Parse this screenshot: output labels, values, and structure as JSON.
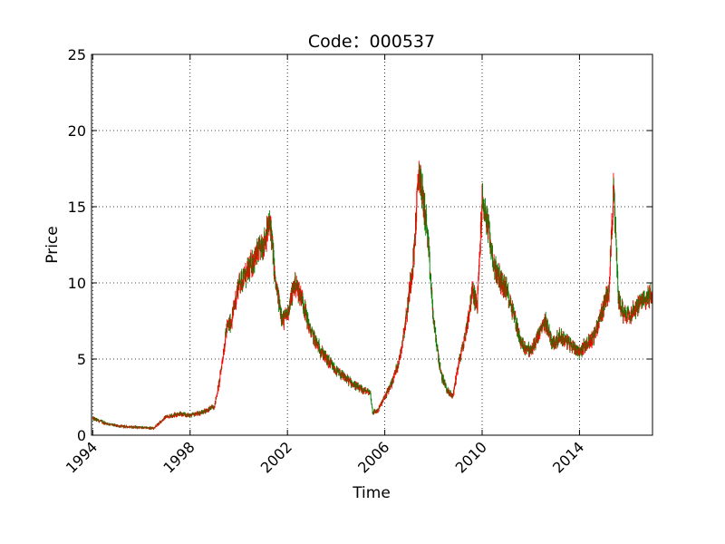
{
  "chart_data": {
    "type": "candlestick",
    "title": "Code：000537",
    "xlabel": "Time",
    "ylabel": "Price",
    "xlim": [
      1993.95,
      2017.0
    ],
    "ylim": [
      0,
      25
    ],
    "x_ticks": [
      1994,
      1998,
      2002,
      2006,
      2010,
      2014
    ],
    "x_tick_labels": [
      "1994",
      "1998",
      "2002",
      "2006",
      "2010",
      "2014"
    ],
    "y_ticks": [
      0,
      5,
      10,
      15,
      20,
      25
    ],
    "y_tick_labels": [
      "0",
      "5",
      "10",
      "15",
      "20",
      "25"
    ],
    "grid": true,
    "grid_style": "dotted",
    "colors": {
      "up": "#ff0000",
      "down": "#008000"
    },
    "price_trend": {
      "x": [
        1994.0,
        1994.5,
        1995.0,
        1995.5,
        1996.0,
        1996.5,
        1997.0,
        1997.5,
        1998.0,
        1998.5,
        1999.0,
        1999.2,
        1999.5,
        1999.7,
        2000.0,
        2000.3,
        2000.6,
        2001.0,
        2001.3,
        2001.5,
        2001.8,
        2002.0,
        2002.3,
        2002.6,
        2002.9,
        2003.2,
        2003.6,
        2004.0,
        2004.5,
        2005.0,
        2005.4,
        2005.5,
        2005.7,
        2006.0,
        2006.3,
        2006.6,
        2006.9,
        2007.2,
        2007.4,
        2007.7,
        2007.8,
        2008.0,
        2008.3,
        2008.6,
        2008.8,
        2009.0,
        2009.3,
        2009.6,
        2009.8,
        2010.0,
        2010.2,
        2010.5,
        2010.8,
        2011.0,
        2011.3,
        2011.6,
        2012.0,
        2012.3,
        2012.6,
        2012.9,
        2013.2,
        2013.6,
        2014.0,
        2014.3,
        2014.6,
        2014.9,
        2015.2,
        2015.4,
        2015.6,
        2015.8,
        2016.1,
        2016.4,
        2016.7,
        2017.0
      ],
      "y": [
        1.1,
        0.8,
        0.6,
        0.55,
        0.5,
        0.45,
        1.2,
        1.4,
        1.3,
        1.5,
        1.9,
        3.5,
        7.0,
        7.5,
        10.0,
        10.5,
        11.5,
        12.5,
        14.0,
        10.0,
        7.5,
        8.0,
        10.0,
        9.0,
        7.0,
        6.0,
        5.0,
        4.2,
        3.6,
        3.0,
        2.8,
        1.5,
        1.6,
        2.5,
        3.5,
        5.0,
        8.0,
        12.0,
        17.5,
        14.0,
        12.0,
        7.5,
        4.0,
        2.8,
        2.6,
        4.5,
        6.5,
        9.5,
        8.5,
        15.5,
        14.0,
        11.0,
        10.0,
        9.5,
        8.0,
        6.0,
        5.5,
        6.5,
        7.5,
        6.0,
        6.5,
        6.0,
        5.5,
        6.0,
        6.5,
        8.0,
        9.5,
        16.0,
        9.0,
        8.0,
        8.0,
        8.5,
        9.0,
        9.2
      ]
    }
  }
}
